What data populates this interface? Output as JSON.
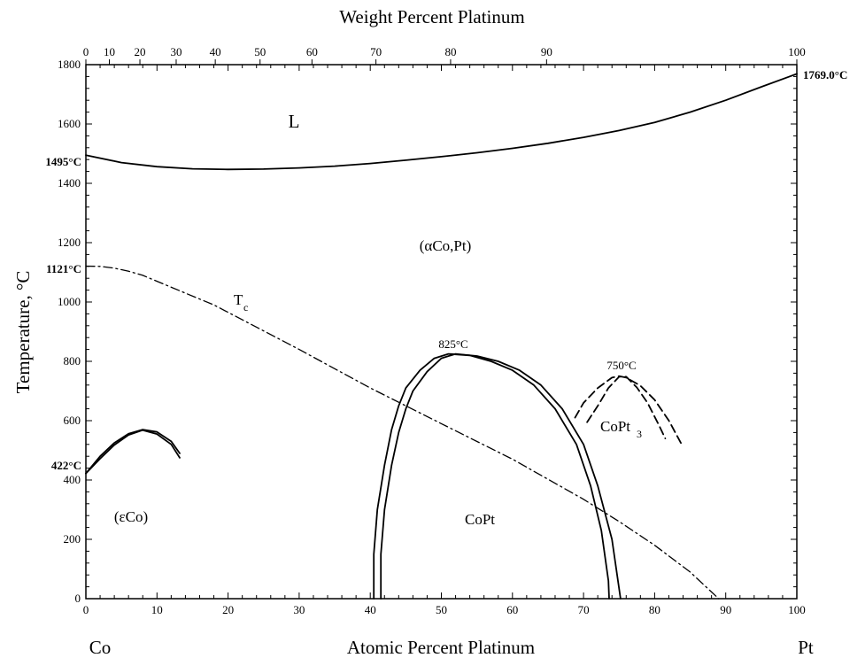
{
  "chart_data": {
    "type": "line",
    "xlabel": "Atomic Percent Platinum",
    "x2label": "Weight Percent Platinum",
    "ylabel": "Temperature, °C",
    "xlim": [
      0,
      100
    ],
    "ylim": [
      0,
      1800
    ],
    "x_ticks": [
      0,
      10,
      20,
      30,
      40,
      50,
      60,
      70,
      80,
      90,
      100
    ],
    "y_ticks": [
      0,
      200,
      400,
      600,
      800,
      1000,
      1200,
      1400,
      1600,
      1800
    ],
    "top_ticks_wt": [
      0,
      10,
      20,
      30,
      40,
      50,
      60,
      70,
      80,
      90,
      100
    ],
    "top_tick_at": [
      0,
      3.3,
      7.6,
      12.7,
      18.2,
      24.5,
      31.8,
      40.8,
      51.3,
      64.8,
      100
    ],
    "element_left": "Co",
    "element_right": "Pt",
    "annotations": {
      "co_melt": "1495°C",
      "pt_melt": "1769.0°C",
      "tc_co": "1121°C",
      "co_trans": "422°C",
      "copt_max": "825°C",
      "copt3_max": "750°C"
    },
    "regions": {
      "liquid": "L",
      "fcc": "(αCo,Pt)",
      "tc": "T",
      "tc_sub": "c",
      "hcp": "(εCo)",
      "copt": "CoPt",
      "copt3": "CoPt",
      "copt3_sub": "3"
    },
    "series": [
      {
        "style": "solid",
        "points": [
          [
            0,
            1495
          ],
          [
            5,
            1470
          ],
          [
            10,
            1456
          ],
          [
            15,
            1449
          ],
          [
            20,
            1447
          ],
          [
            25,
            1448
          ],
          [
            30,
            1452
          ],
          [
            35,
            1458
          ],
          [
            40,
            1467
          ],
          [
            45,
            1478
          ],
          [
            50,
            1490
          ],
          [
            55,
            1503
          ],
          [
            60,
            1518
          ],
          [
            65,
            1535
          ],
          [
            70,
            1555
          ],
          [
            75,
            1578
          ],
          [
            80,
            1605
          ],
          [
            85,
            1640
          ],
          [
            90,
            1680
          ],
          [
            95,
            1725
          ],
          [
            100,
            1769
          ]
        ]
      },
      {
        "style": "dashdot",
        "points": [
          [
            0,
            1121
          ],
          [
            2,
            1120
          ],
          [
            4,
            1114
          ],
          [
            6,
            1104
          ],
          [
            8,
            1090
          ],
          [
            10,
            1070
          ],
          [
            14,
            1030
          ],
          [
            18,
            990
          ],
          [
            22,
            940
          ],
          [
            30,
            840
          ],
          [
            40,
            710
          ],
          [
            50,
            590
          ],
          [
            60,
            470
          ],
          [
            70,
            335
          ],
          [
            75,
            260
          ],
          [
            80,
            180
          ],
          [
            85,
            90
          ],
          [
            89,
            0
          ]
        ]
      },
      {
        "style": "solid",
        "points": [
          [
            0,
            422
          ],
          [
            2,
            480
          ],
          [
            4,
            525
          ],
          [
            6,
            556
          ],
          [
            8,
            570
          ],
          [
            10,
            562
          ],
          [
            12,
            530
          ],
          [
            13.2,
            490
          ]
        ]
      },
      {
        "style": "solid",
        "points": [
          [
            0,
            422
          ],
          [
            2,
            472
          ],
          [
            4,
            518
          ],
          [
            6,
            552
          ],
          [
            8,
            568
          ],
          [
            10,
            555
          ],
          [
            12,
            520
          ],
          [
            13.2,
            475
          ]
        ]
      },
      {
        "style": "solid",
        "points": [
          [
            40.5,
            0
          ],
          [
            40.5,
            150
          ],
          [
            41,
            300
          ],
          [
            42,
            450
          ],
          [
            43,
            570
          ],
          [
            44,
            650
          ],
          [
            45,
            710
          ],
          [
            47,
            770
          ],
          [
            49,
            810
          ],
          [
            51,
            825
          ],
          [
            54,
            820
          ],
          [
            57,
            800
          ],
          [
            60,
            770
          ],
          [
            63,
            720
          ],
          [
            66,
            640
          ],
          [
            69,
            520
          ],
          [
            71,
            380
          ],
          [
            72.5,
            230
          ],
          [
            73.5,
            60
          ],
          [
            73.6,
            0
          ]
        ]
      },
      {
        "style": "solid",
        "points": [
          [
            41.5,
            0
          ],
          [
            41.5,
            150
          ],
          [
            42,
            300
          ],
          [
            43,
            450
          ],
          [
            44,
            560
          ],
          [
            45,
            640
          ],
          [
            46,
            700
          ],
          [
            48,
            765
          ],
          [
            50,
            810
          ],
          [
            52,
            825
          ],
          [
            55,
            818
          ],
          [
            58,
            800
          ],
          [
            61,
            770
          ],
          [
            64,
            720
          ],
          [
            67,
            640
          ],
          [
            70,
            520
          ],
          [
            72,
            380
          ],
          [
            74,
            200
          ],
          [
            75.2,
            0
          ]
        ]
      },
      {
        "style": "dashed",
        "points": [
          [
            68.8,
            610
          ],
          [
            70,
            660
          ],
          [
            72,
            710
          ],
          [
            74,
            745
          ],
          [
            75,
            750
          ],
          [
            76,
            745
          ],
          [
            78,
            718
          ],
          [
            80,
            670
          ],
          [
            82,
            600
          ],
          [
            83.8,
            520
          ]
        ]
      },
      {
        "style": "dashed",
        "points": [
          [
            70.5,
            595
          ],
          [
            72,
            650
          ],
          [
            73.5,
            710
          ],
          [
            75,
            748
          ],
          [
            76,
            748
          ],
          [
            77.5,
            712
          ],
          [
            79,
            660
          ],
          [
            80.5,
            590
          ],
          [
            81.5,
            540
          ]
        ]
      }
    ]
  }
}
